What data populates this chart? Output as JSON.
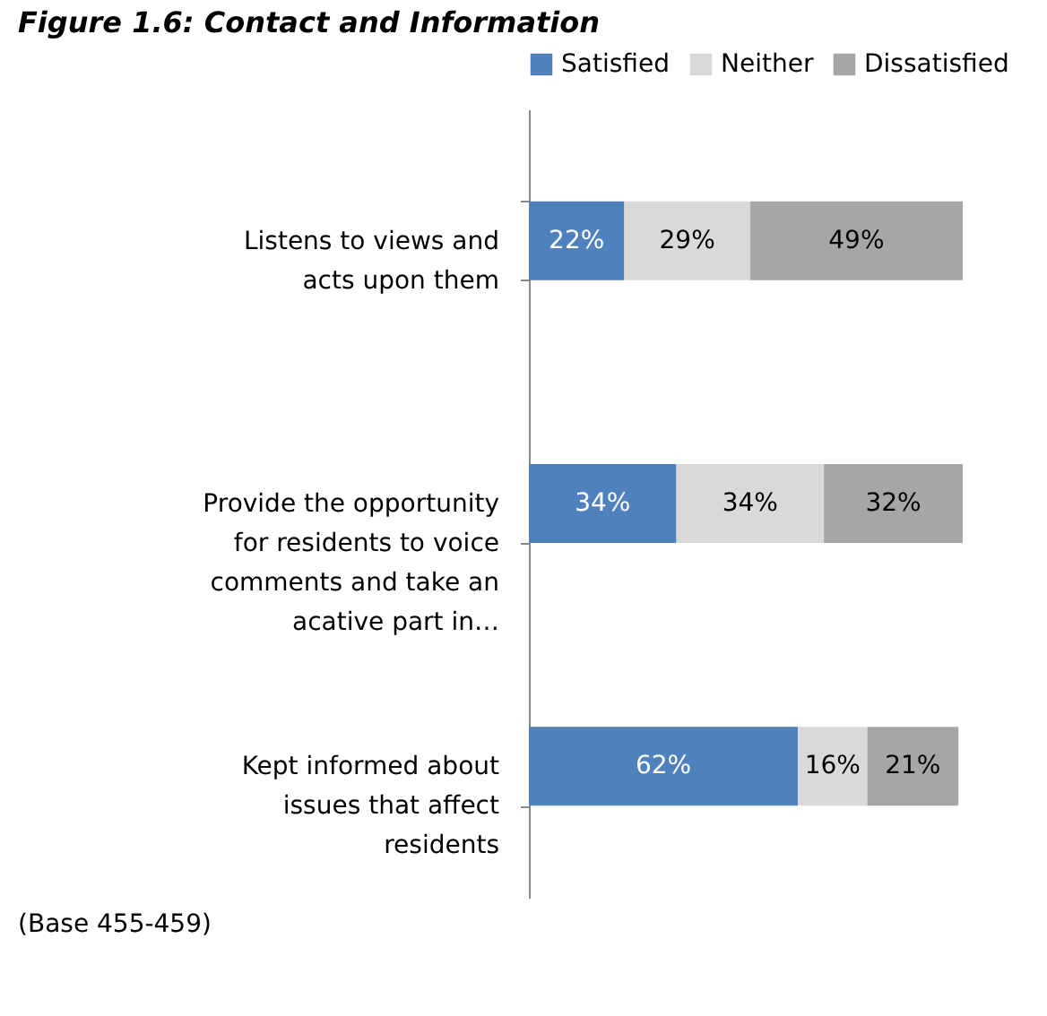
{
  "chart_data": {
    "type": "bar",
    "orientation": "horizontal",
    "stacked": true,
    "title": "Figure 1.6: Contact and Information",
    "categories": [
      "Listens to views and acts upon them",
      "Provide the opportunity for residents to voice comments and take an acative part in…",
      "Kept informed about issues that affect residents"
    ],
    "series": [
      {
        "name": "Satisfied",
        "color": "#4f81bd",
        "values": [
          22,
          34,
          62
        ],
        "value_labels": [
          "22%",
          "34%",
          "62%"
        ]
      },
      {
        "name": "Neither",
        "color": "#d9d9d9",
        "values": [
          29,
          34,
          16
        ],
        "value_labels": [
          "29%",
          "34%",
          "16%"
        ]
      },
      {
        "name": "Dissatisfied",
        "color": "#a6a6a6",
        "values": [
          49,
          32,
          21
        ],
        "value_labels": [
          "49%",
          "32%",
          "21%"
        ]
      }
    ],
    "tick_labels": "y",
    "grid": false,
    "legend": "top",
    "annotations": [
      "(Base 455-459)"
    ]
  }
}
